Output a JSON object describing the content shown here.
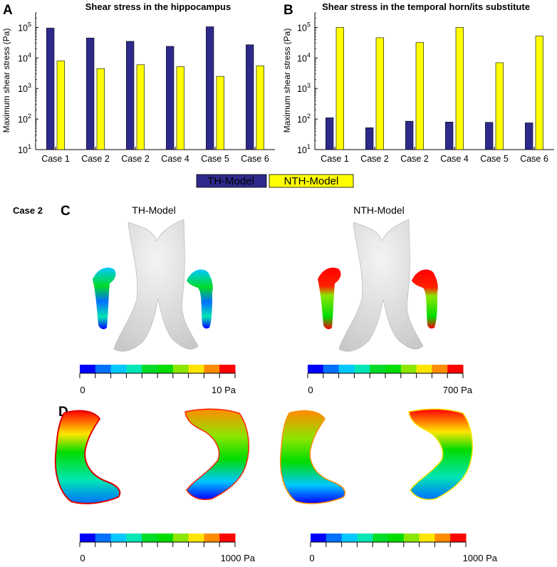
{
  "colors": {
    "th": "#2e2a8c",
    "nth": "#ffff00",
    "axis": "#000000",
    "bone": "#dcdcdc",
    "colormap": [
      "#0000ff",
      "#0070ff",
      "#00c8ff",
      "#00e6b4",
      "#00dc28",
      "#00dc00",
      "#8ce600",
      "#ffe600",
      "#ff8c00",
      "#ff0000"
    ]
  },
  "chart_data": [
    {
      "panel": "A",
      "type": "bar",
      "title": "Shear stress in the hippocampus",
      "ylabel": "Maximum shear stress (Pa)",
      "yscale": "log",
      "ylim": [
        10,
        300000
      ],
      "yticks": [
        {
          "base": "10",
          "exp": "1",
          "value": 10
        },
        {
          "base": "10",
          "exp": "2",
          "value": 100
        },
        {
          "base": "10",
          "exp": "3",
          "value": 1000
        },
        {
          "base": "10",
          "exp": "4",
          "value": 10000
        },
        {
          "base": "10",
          "exp": "5",
          "value": 100000
        }
      ],
      "categories": [
        "Case 1",
        "Case 2",
        "Case 2",
        "Case 4",
        "Case 5",
        "Case 6"
      ],
      "series": [
        {
          "name": "TH-Model",
          "values": [
            95000,
            45000,
            35000,
            24000,
            105000,
            27000
          ]
        },
        {
          "name": "NTH-Model",
          "values": [
            8000,
            4500,
            6000,
            5200,
            2500,
            5500
          ]
        }
      ]
    },
    {
      "panel": "B",
      "type": "bar",
      "title": "Shear stress in the temporal horn/its substitute",
      "ylabel": "Maximum shear stress (Pa)",
      "yscale": "log",
      "ylim": [
        10,
        300000
      ],
      "yticks": [
        {
          "base": "10",
          "exp": "1",
          "value": 10
        },
        {
          "base": "10",
          "exp": "2",
          "value": 100
        },
        {
          "base": "10",
          "exp": "3",
          "value": 1000
        },
        {
          "base": "10",
          "exp": "4",
          "value": 10000
        },
        {
          "base": "10",
          "exp": "5",
          "value": 100000
        }
      ],
      "categories": [
        "Case 1",
        "Case 2",
        "Case 2",
        "Case 4",
        "Case 5",
        "Case 6"
      ],
      "series": [
        {
          "name": "TH-Model",
          "values": [
            110,
            52,
            85,
            80,
            78,
            75
          ]
        },
        {
          "name": "NTH-Model",
          "values": [
            100000,
            46000,
            32000,
            100000,
            7000,
            52000
          ]
        }
      ]
    }
  ],
  "legend": {
    "items": [
      {
        "name": "TH-Model"
      },
      {
        "name": "NTH-Model"
      }
    ]
  },
  "panel_c": {
    "letter": "C",
    "case_label": "Case 2",
    "left_title": "TH-Model",
    "right_title": "NTH-Model",
    "left_scale": {
      "min": "0",
      "max": "10 Pa"
    },
    "right_scale": {
      "min": "0",
      "max": "700 Pa"
    }
  },
  "panel_d": {
    "letter": "D",
    "left_scale": {
      "min": "0",
      "max": "1000 Pa"
    },
    "right_scale": {
      "min": "0",
      "max": "1000 Pa"
    }
  }
}
